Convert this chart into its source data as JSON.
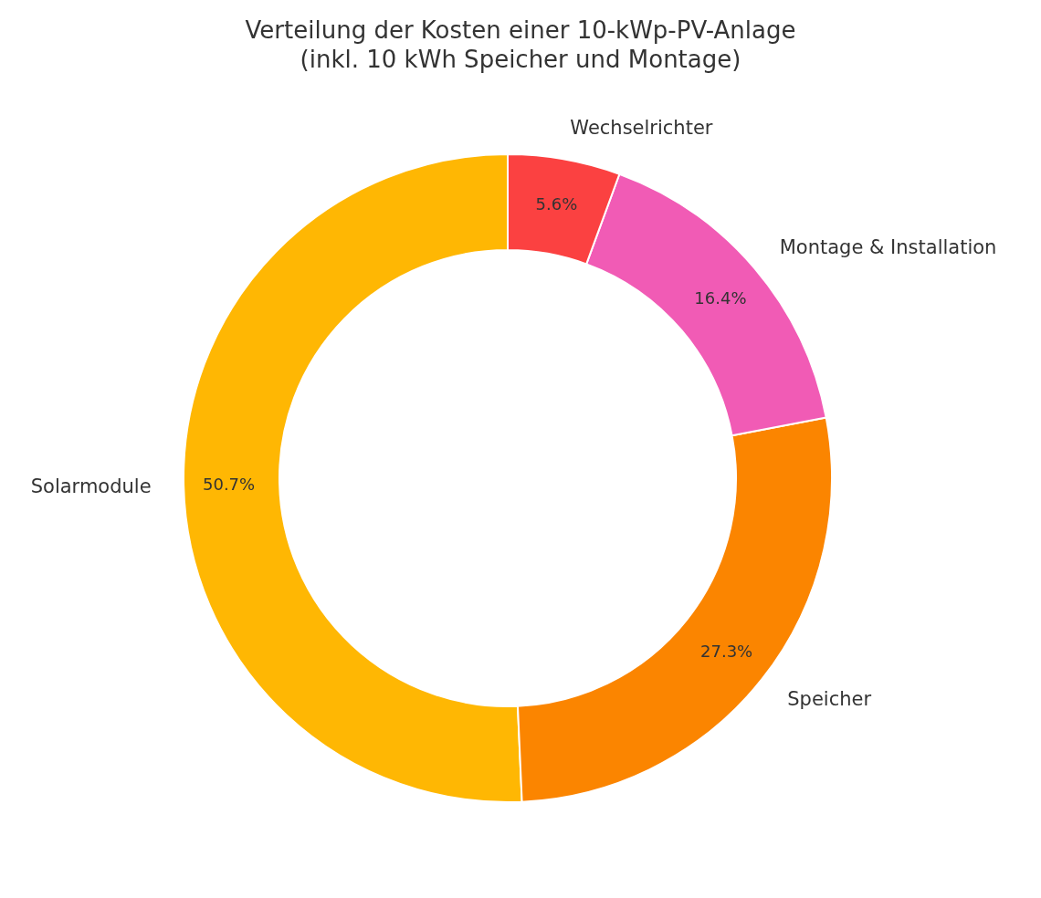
{
  "chart_data": {
    "type": "donut",
    "title": "Verteilung der Kosten einer 10-kWp-PV-Anlage\n(inkl. 10 kWh Speicher und Montage)",
    "categories": [
      "Solarmodule",
      "Speicher",
      "Montage & Installation",
      "Wechselrichter"
    ],
    "values": [
      50.7,
      27.3,
      16.4,
      5.6
    ],
    "colors": [
      "#ffb703",
      "#fb8500",
      "#f15bb5",
      "#fb4141"
    ],
    "value_labels": [
      "50.7%",
      "27.3%",
      "16.4%",
      "5.6%"
    ],
    "legend": false
  }
}
